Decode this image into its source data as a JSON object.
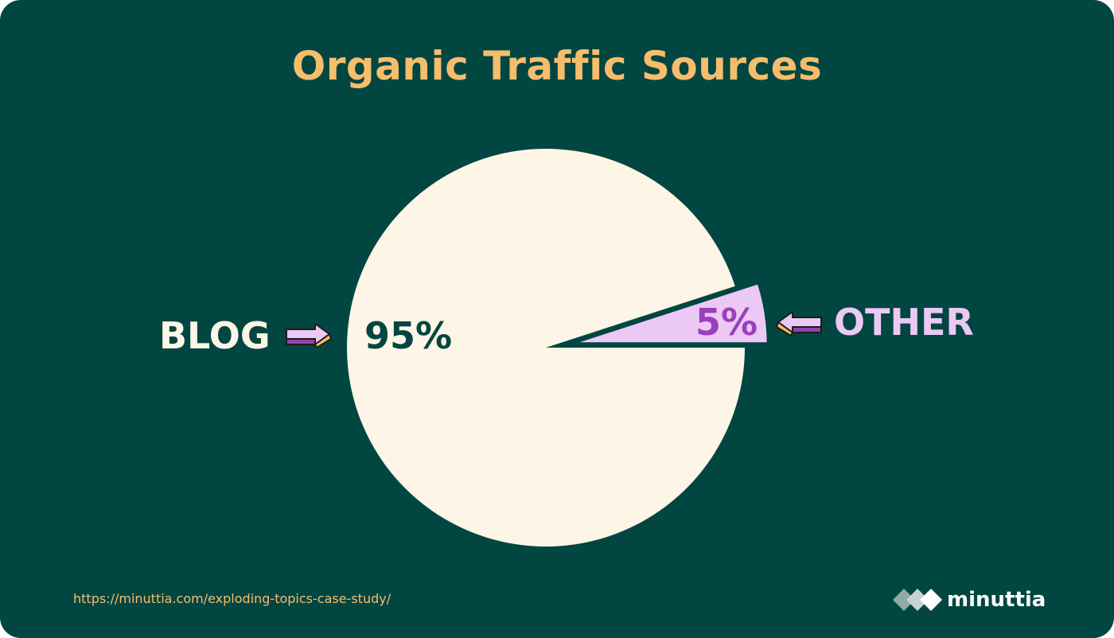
{
  "chart_data": {
    "type": "pie",
    "title": "Organic Traffic Sources",
    "slices": [
      {
        "label": "BLOG",
        "value": 95,
        "value_label": "95%",
        "color": "#fdf5e6",
        "exploded": false
      },
      {
        "label": "OTHER",
        "value": 5,
        "value_label": "5%",
        "color": "#ebc9f4",
        "exploded": true
      }
    ],
    "legend": "none",
    "grid": false
  },
  "footer": {
    "source_url": "https://minuttia.com/exploding-topics-case-study/",
    "brand_name": "minuttia"
  },
  "colors": {
    "background": "#024642",
    "title": "#f6bd6c",
    "other_pct_text": "#9a3fbd",
    "arrow_purple": "#8e44ad",
    "arrow_tan": "#f6bd6c"
  },
  "icons": {
    "blog_arrow": "arrow-right-icon",
    "other_arrow": "arrow-left-icon",
    "brand_logo": "minuttia-logo-icon"
  }
}
